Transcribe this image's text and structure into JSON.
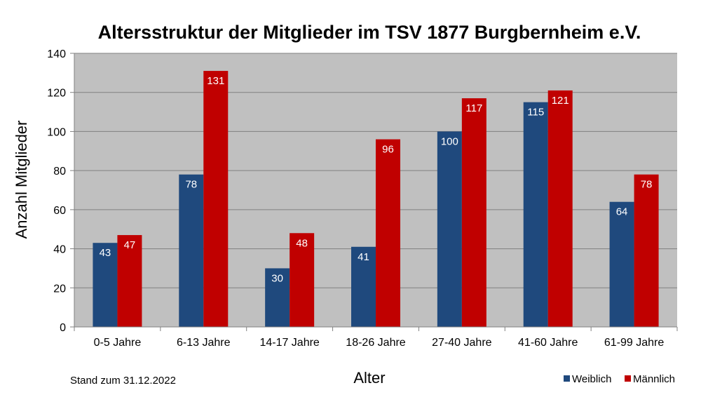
{
  "chart_data": {
    "type": "bar",
    "title": "Altersstruktur der Mitglieder im TSV 1877 Burgbernheim e.V.",
    "xlabel": "Alter",
    "ylabel": "Anzahl Mitglieder",
    "ylim": [
      0,
      140
    ],
    "yticks": [
      0,
      20,
      40,
      60,
      80,
      100,
      120,
      140
    ],
    "grid": true,
    "legend_position": "bottom-right",
    "categories": [
      "0-5 Jahre",
      "6-13 Jahre",
      "14-17 Jahre",
      "18-26 Jahre",
      "27-40 Jahre",
      "41-60 Jahre",
      "61-99 Jahre"
    ],
    "series": [
      {
        "name": "Weiblich",
        "color": "#1F497D",
        "values": [
          43,
          78,
          30,
          41,
          100,
          115,
          64
        ]
      },
      {
        "name": "Männlich",
        "color": "#C00000",
        "values": [
          47,
          131,
          48,
          96,
          117,
          121,
          78
        ]
      }
    ]
  },
  "note": "Stand zum 31.12.2022",
  "colors": {
    "plot_background": "#C0C0C0",
    "gridline": "#808080"
  }
}
